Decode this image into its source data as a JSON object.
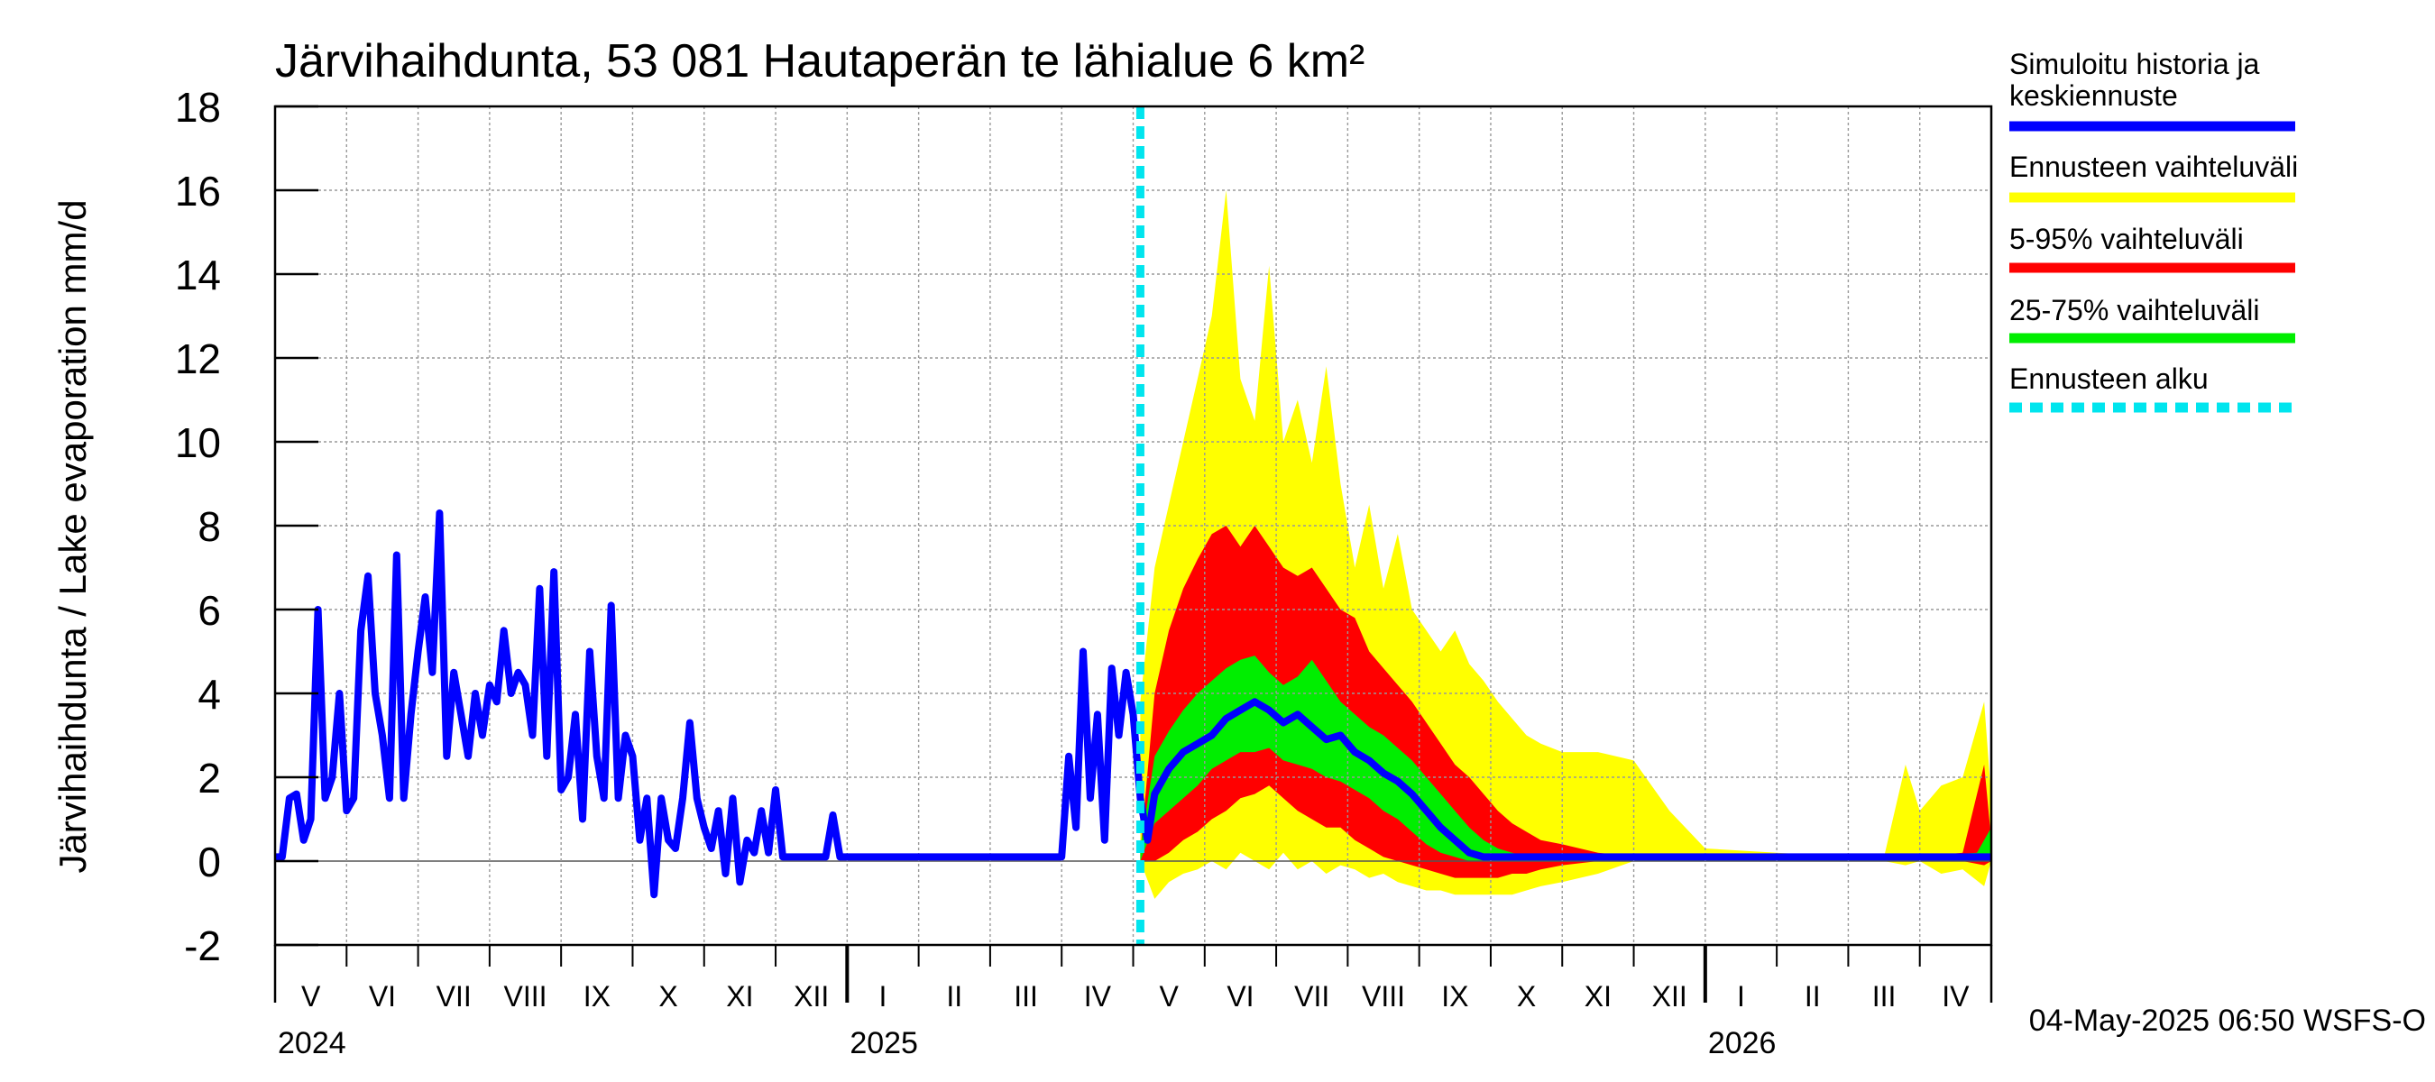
{
  "chart_data": {
    "type": "area",
    "title": "Järvihaihdunta, 53 081 Hautaperän te lähialue 6 km²",
    "ylabel": "Järvihaihdunta / Lake evaporation   mm/d",
    "xlabel": "",
    "ylim": [
      -2,
      18
    ],
    "yticks": [
      -2,
      0,
      2,
      4,
      6,
      8,
      10,
      12,
      14,
      16,
      18
    ],
    "x_unit": "months since 2024-05-01",
    "xlim": [
      0,
      24
    ],
    "grid": true,
    "month_labels": [
      "V",
      "VI",
      "VII",
      "VIII",
      "IX",
      "X",
      "XI",
      "XII",
      "I",
      "II",
      "III",
      "IV",
      "V",
      "VI",
      "VII",
      "VIII",
      "IX",
      "X",
      "XI",
      "XII",
      "I",
      "II",
      "III",
      "IV"
    ],
    "year_labels": [
      {
        "label": "2024",
        "at_month": 0
      },
      {
        "label": "2025",
        "at_month": 8
      },
      {
        "label": "2026",
        "at_month": 20
      }
    ],
    "forecast_start": 12.1,
    "legend_placement": "right",
    "legend": [
      {
        "label": "Simuloitu historia ja keskiennuste",
        "color": "#0000ff",
        "style": "solid"
      },
      {
        "label": "Ennusteen vaihteluväli",
        "color": "#ffff00",
        "style": "solid"
      },
      {
        "label": "5-95% vaihteluväli",
        "color": "#ff0000",
        "style": "solid"
      },
      {
        "label": "25-75% vaihteluväli",
        "color": "#00ee00",
        "style": "solid"
      },
      {
        "label": "Ennusteen alku",
        "color": "#00e5ee",
        "style": "dashed"
      }
    ],
    "series": [
      {
        "name": "Simuloitu historia ja keskiennuste",
        "x": [
          0,
          0.1,
          0.2,
          0.3,
          0.4,
          0.5,
          0.6,
          0.7,
          0.8,
          0.9,
          1.0,
          1.1,
          1.2,
          1.3,
          1.4,
          1.5,
          1.6,
          1.7,
          1.8,
          1.9,
          2.0,
          2.1,
          2.2,
          2.3,
          2.4,
          2.5,
          2.6,
          2.7,
          2.8,
          2.9,
          3.0,
          3.1,
          3.2,
          3.3,
          3.4,
          3.5,
          3.6,
          3.7,
          3.8,
          3.9,
          4.0,
          4.1,
          4.2,
          4.3,
          4.4,
          4.5,
          4.6,
          4.7,
          4.8,
          4.9,
          5.0,
          5.1,
          5.2,
          5.3,
          5.4,
          5.5,
          5.6,
          5.7,
          5.8,
          5.9,
          6.0,
          6.1,
          6.2,
          6.3,
          6.4,
          6.5,
          6.6,
          6.7,
          6.8,
          6.9,
          7.0,
          7.1,
          7.2,
          7.3,
          7.4,
          7.5,
          7.6,
          7.7,
          7.8,
          7.9,
          8.0,
          8.5,
          9.0,
          9.5,
          10.0,
          10.5,
          11.0,
          11.1,
          11.2,
          11.3,
          11.4,
          11.5,
          11.6,
          11.7,
          11.8,
          11.9,
          12.0,
          12.1,
          12.2,
          12.3,
          12.5,
          12.7,
          12.9,
          13.1,
          13.3,
          13.5,
          13.7,
          13.9,
          14.1,
          14.3,
          14.5,
          14.7,
          14.9,
          15.1,
          15.3,
          15.5,
          15.7,
          15.9,
          16.1,
          16.3,
          16.5,
          16.7,
          16.9,
          17.1,
          17.3,
          17.5,
          17.7,
          18.0,
          18.5,
          19.0,
          19.5,
          20.0,
          21.0,
          22.0,
          23.0,
          23.5,
          24.0
        ],
        "values": [
          0.1,
          0.1,
          1.5,
          1.6,
          0.5,
          1.0,
          6.0,
          1.5,
          2.0,
          4.0,
          1.2,
          1.5,
          5.5,
          6.8,
          4.0,
          3.0,
          1.5,
          7.3,
          1.5,
          3.5,
          5.0,
          6.3,
          4.5,
          8.3,
          2.5,
          4.5,
          3.5,
          2.5,
          4.0,
          3.0,
          4.2,
          3.8,
          5.5,
          4.0,
          4.5,
          4.2,
          3.0,
          6.5,
          2.5,
          6.9,
          1.7,
          2.0,
          3.5,
          1.0,
          5.0,
          2.5,
          1.5,
          6.1,
          1.5,
          3.0,
          2.5,
          0.5,
          1.5,
          -0.8,
          1.5,
          0.5,
          0.3,
          1.5,
          3.3,
          1.5,
          0.8,
          0.3,
          1.2,
          -0.3,
          1.5,
          -0.5,
          0.5,
          0.2,
          1.2,
          0.2,
          1.7,
          0.1,
          0.1,
          0.1,
          0.1,
          0.1,
          0.1,
          0.1,
          1.1,
          0.1,
          0.1,
          0.1,
          0.1,
          0.1,
          0.1,
          0.1,
          0.1,
          2.5,
          0.8,
          5.0,
          1.5,
          3.5,
          0.5,
          4.6,
          3.0,
          4.5,
          3.5,
          1.5,
          0.5,
          1.6,
          2.2,
          2.6,
          2.8,
          3.0,
          3.4,
          3.6,
          3.8,
          3.6,
          3.3,
          3.5,
          3.2,
          2.9,
          3.0,
          2.6,
          2.4,
          2.1,
          1.9,
          1.6,
          1.2,
          0.8,
          0.5,
          0.2,
          0.1,
          0.1,
          0.1,
          0.1,
          0.1,
          0.1,
          0.1,
          0.1,
          0.1,
          0.1,
          0.1,
          0.1,
          0.1,
          0.1,
          0.1
        ]
      },
      {
        "name": "Ennusteen vaihteluväli",
        "x": [
          12.1,
          12.3,
          12.5,
          12.7,
          12.9,
          13.1,
          13.3,
          13.5,
          13.7,
          13.9,
          14.1,
          14.3,
          14.5,
          14.7,
          14.9,
          15.1,
          15.3,
          15.5,
          15.7,
          15.9,
          16.1,
          16.3,
          16.5,
          16.7,
          16.9,
          17.1,
          17.3,
          17.5,
          17.7,
          18.0,
          18.5,
          19.0,
          19.5,
          20.0,
          21.0,
          22.0,
          22.5,
          22.8,
          23.0,
          23.3,
          23.6,
          23.9,
          24.0
        ],
        "upper": [
          3.8,
          7.0,
          8.5,
          10.0,
          11.5,
          13.0,
          16.0,
          11.5,
          10.5,
          14.2,
          10.0,
          11.0,
          9.5,
          11.8,
          9.0,
          7.0,
          8.5,
          6.5,
          7.8,
          6.0,
          5.5,
          5.0,
          5.5,
          4.7,
          4.3,
          3.8,
          3.4,
          3.0,
          2.8,
          2.6,
          2.6,
          2.4,
          1.2,
          0.3,
          0.2,
          0.1,
          0.1,
          2.3,
          1.2,
          1.8,
          2.0,
          3.8,
          1.5
        ],
        "lower": [
          0.0,
          -0.9,
          -0.5,
          -0.3,
          -0.2,
          0.0,
          -0.2,
          0.2,
          0.0,
          -0.2,
          0.2,
          -0.2,
          0.0,
          -0.3,
          -0.1,
          -0.2,
          -0.4,
          -0.3,
          -0.5,
          -0.6,
          -0.7,
          -0.7,
          -0.8,
          -0.8,
          -0.8,
          -0.8,
          -0.8,
          -0.7,
          -0.6,
          -0.5,
          -0.3,
          0.0,
          0.0,
          0.0,
          0.0,
          0.0,
          0.0,
          -0.1,
          0.0,
          -0.3,
          -0.2,
          -0.6,
          0.0
        ]
      },
      {
        "name": "5-95% vaihteluväli",
        "x": [
          12.1,
          12.3,
          12.5,
          12.7,
          12.9,
          13.1,
          13.3,
          13.5,
          13.7,
          13.9,
          14.1,
          14.3,
          14.5,
          14.7,
          14.9,
          15.1,
          15.3,
          15.5,
          15.7,
          15.9,
          16.1,
          16.3,
          16.5,
          16.7,
          16.9,
          17.1,
          17.3,
          17.5,
          17.7,
          18.0,
          18.5,
          19.0,
          19.5,
          20.0,
          21.0,
          22.0,
          23.0,
          23.6,
          23.9,
          24.0
        ],
        "upper": [
          0.2,
          4.0,
          5.5,
          6.5,
          7.2,
          7.8,
          8.0,
          7.5,
          8.0,
          7.5,
          7.0,
          6.8,
          7.0,
          6.5,
          6.0,
          5.8,
          5.0,
          4.6,
          4.2,
          3.8,
          3.3,
          2.8,
          2.3,
          2.0,
          1.6,
          1.2,
          0.9,
          0.7,
          0.5,
          0.4,
          0.2,
          0.1,
          0.1,
          0.1,
          0.1,
          0.1,
          0.1,
          0.2,
          2.3,
          0.5
        ],
        "lower": [
          0.0,
          0.0,
          0.2,
          0.5,
          0.7,
          1.0,
          1.2,
          1.5,
          1.6,
          1.8,
          1.5,
          1.2,
          1.0,
          0.8,
          0.8,
          0.5,
          0.3,
          0.1,
          0.0,
          -0.1,
          -0.2,
          -0.3,
          -0.4,
          -0.4,
          -0.4,
          -0.4,
          -0.3,
          -0.3,
          -0.2,
          -0.1,
          0.0,
          0.0,
          0.0,
          0.0,
          0.0,
          0.0,
          0.0,
          0.0,
          -0.1,
          0.0
        ]
      },
      {
        "name": "25-75% vaihteluväli",
        "x": [
          12.1,
          12.3,
          12.5,
          12.7,
          12.9,
          13.1,
          13.3,
          13.5,
          13.7,
          13.9,
          14.1,
          14.3,
          14.5,
          14.7,
          14.9,
          15.1,
          15.3,
          15.5,
          15.7,
          15.9,
          16.1,
          16.3,
          16.5,
          16.7,
          16.9,
          17.1,
          17.3,
          17.5,
          17.7,
          18.0,
          18.5,
          19.0,
          19.5,
          20.0,
          21.0,
          22.0,
          23.0,
          23.8,
          24.0
        ],
        "upper": [
          0.3,
          2.5,
          3.1,
          3.6,
          4.0,
          4.3,
          4.6,
          4.8,
          4.9,
          4.5,
          4.2,
          4.4,
          4.8,
          4.3,
          3.8,
          3.5,
          3.2,
          3.0,
          2.7,
          2.4,
          2.0,
          1.6,
          1.2,
          0.8,
          0.5,
          0.3,
          0.2,
          0.1,
          0.1,
          0.1,
          0.1,
          0.1,
          0.1,
          0.1,
          0.1,
          0.1,
          0.1,
          0.2,
          0.8
        ],
        "lower": [
          0.0,
          0.9,
          1.2,
          1.5,
          1.8,
          2.2,
          2.4,
          2.6,
          2.6,
          2.7,
          2.4,
          2.3,
          2.2,
          2.0,
          1.9,
          1.7,
          1.5,
          1.2,
          1.0,
          0.7,
          0.4,
          0.2,
          0.1,
          0.0,
          0.0,
          0.0,
          0.0,
          0.0,
          0.0,
          0.0,
          0.0,
          0.0,
          0.0,
          0.0,
          0.0,
          0.0,
          0.0,
          0.0,
          0.0
        ]
      }
    ]
  },
  "footer": {
    "timestamp": "04-May-2025 06:50 WSFS-O"
  },
  "colors": {
    "history": "#0000ff",
    "range_full": "#ffff00",
    "range_5_95": "#ff0000",
    "range_25_75": "#00ee00",
    "forecast_start": "#00e5ee",
    "grid": "#999999",
    "axis": "#000000"
  }
}
